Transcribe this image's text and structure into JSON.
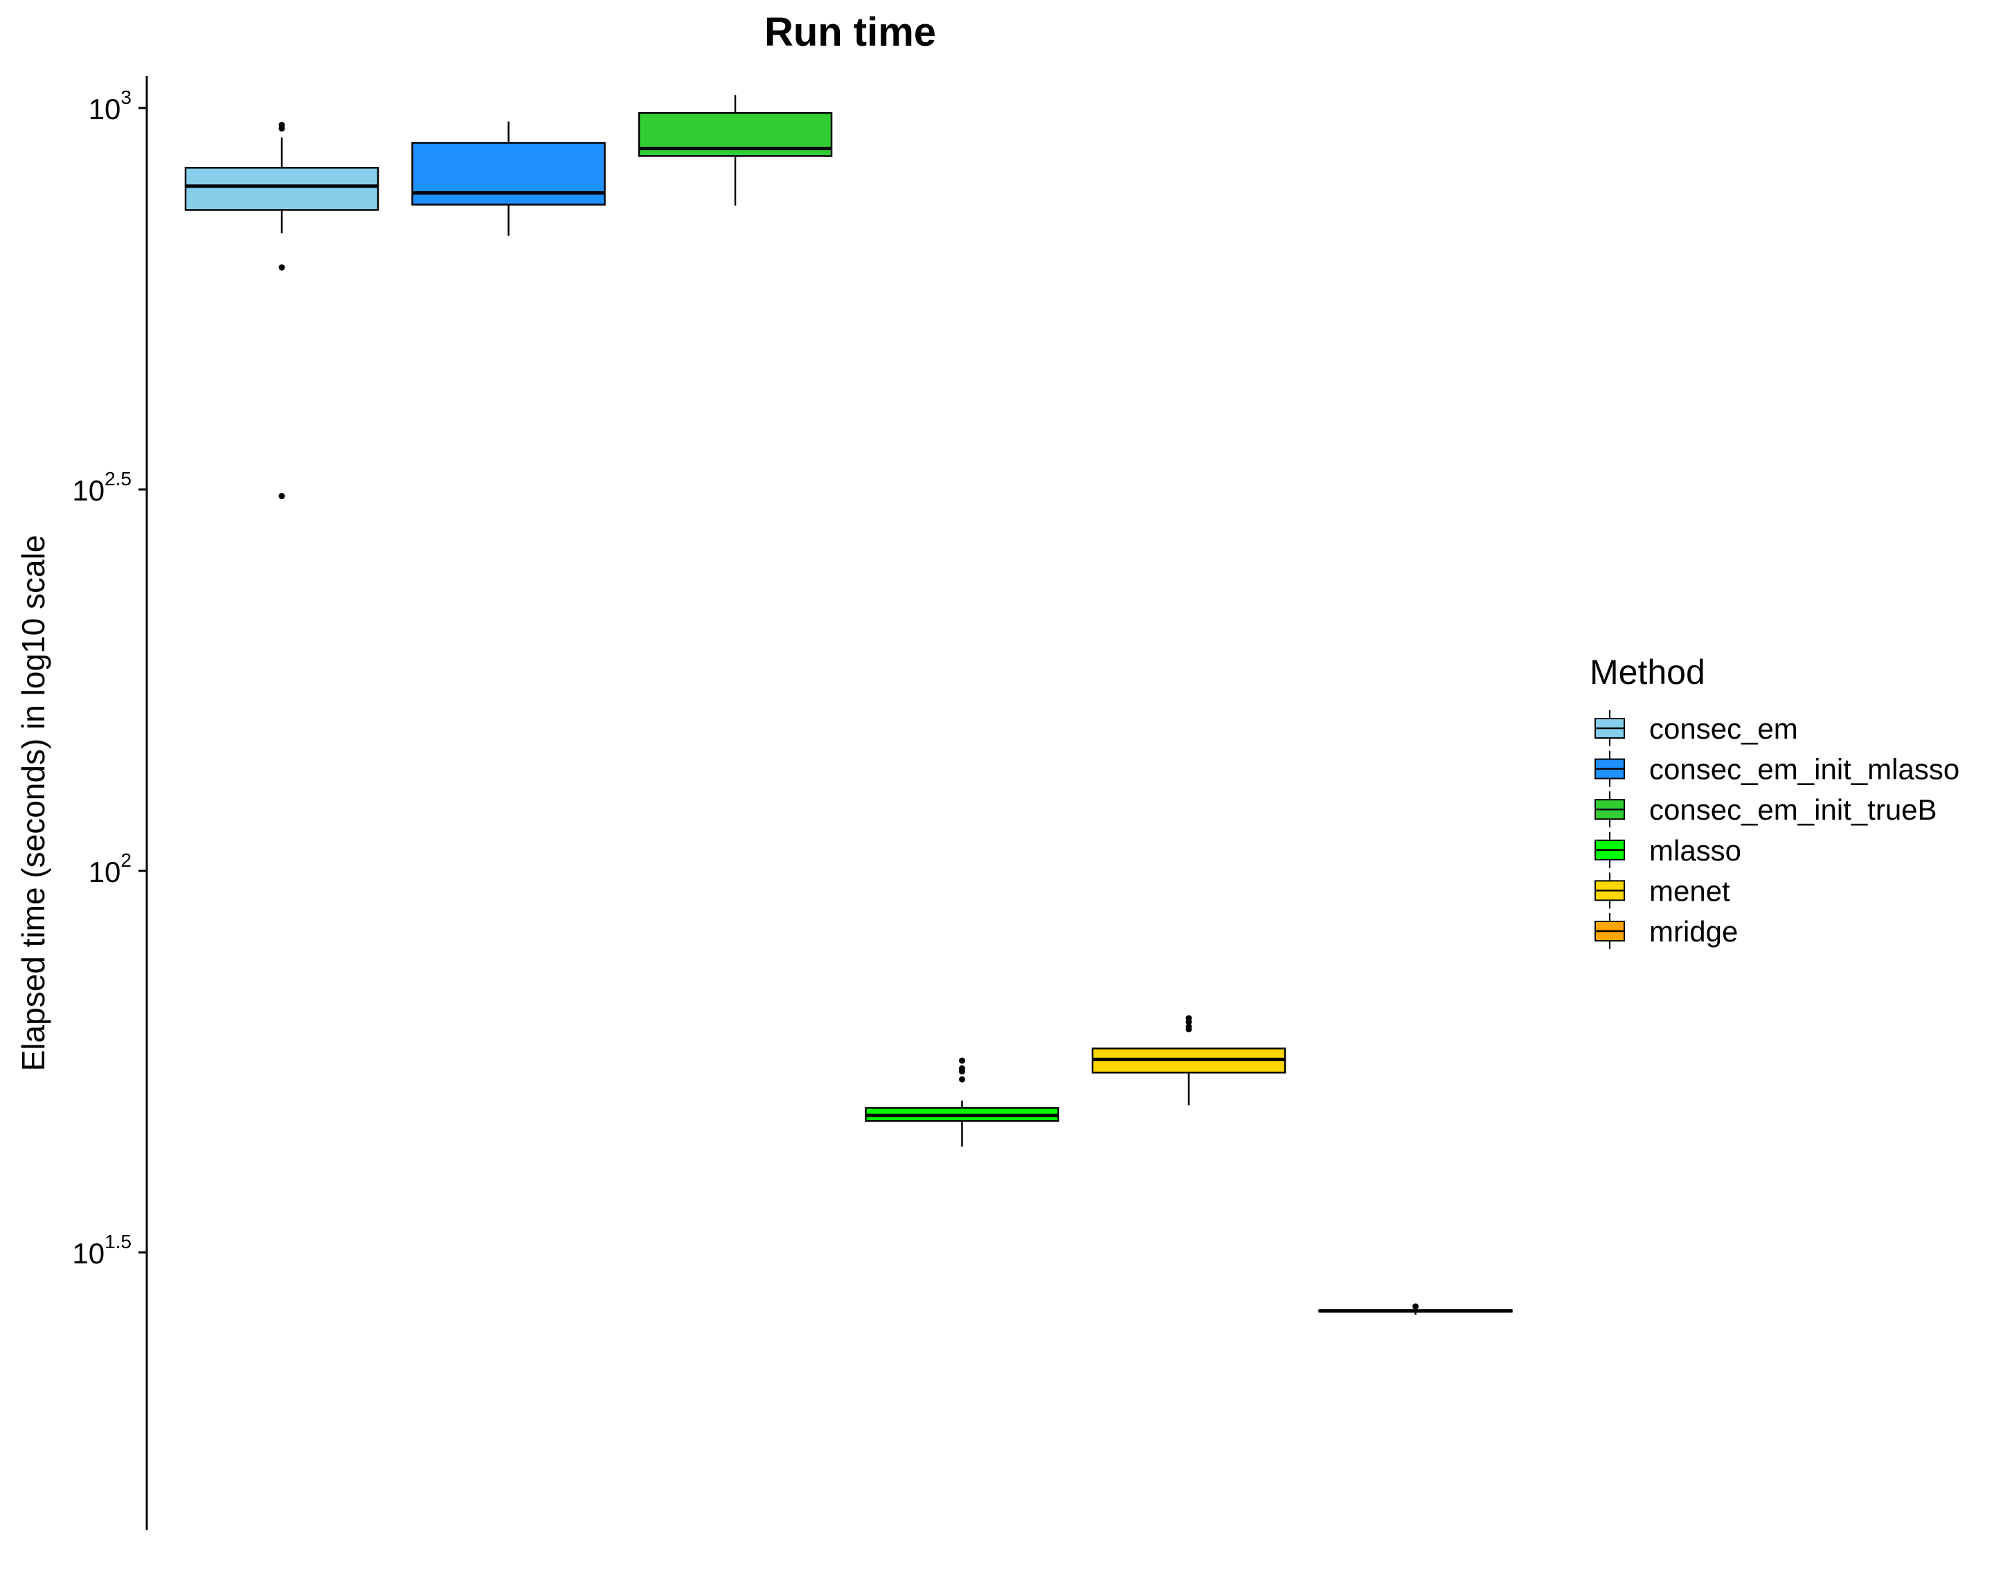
{
  "chart_data": {
    "type": "box",
    "title": "Run time",
    "xlabel": "",
    "ylabel": "Elapsed time (seconds) in log10 scale",
    "y_scale": "log10",
    "ylim": [
      17.5,
      1090
    ],
    "y_ticks": [
      {
        "value": 1000,
        "base": "10",
        "exp": "3"
      },
      {
        "value": 316.23,
        "base": "10",
        "exp": "2.5"
      },
      {
        "value": 100,
        "base": "10",
        "exp": "2"
      },
      {
        "value": 31.62,
        "base": "10",
        "exp": "1.5"
      }
    ],
    "grid": false,
    "legend": {
      "title": "Method",
      "position": "right"
    },
    "series": [
      {
        "name": "consec_em",
        "color": "#87CEEB",
        "whisker_low": 685,
        "q1": 735,
        "median": 790,
        "q3": 835,
        "whisker_high": 915,
        "outliers": [
          950,
          940,
          618,
          310
        ]
      },
      {
        "name": "consec_em_init_mlasso",
        "color": "#1E90FF",
        "whisker_low": 680,
        "q1": 747,
        "median": 774,
        "q3": 900,
        "whisker_high": 960,
        "outliers": []
      },
      {
        "name": "consec_em_init_trueB",
        "color": "#32CD32",
        "whisker_low": 745,
        "q1": 865,
        "median": 885,
        "q3": 985,
        "whisker_high": 1040,
        "outliers": []
      },
      {
        "name": "mlasso",
        "color": "#00FF00",
        "whisker_low": 43.5,
        "q1": 47.0,
        "median": 47.8,
        "q3": 48.9,
        "whisker_high": 50.0,
        "outliers": [
          53.3,
          54.6,
          55.1,
          56.4
        ]
      },
      {
        "name": "menet",
        "color": "#FFD700",
        "whisker_low": 49.3,
        "q1": 54.4,
        "median": 56.6,
        "q3": 58.5,
        "whisker_high": 58.5,
        "outliers": [
          62.0,
          62.5,
          63.4,
          64.1
        ]
      },
      {
        "name": "mridge",
        "color": "#FFA500",
        "whisker_low": 26.2,
        "q1": 26.45,
        "median": 26.5,
        "q3": 26.55,
        "whisker_high": 26.7,
        "outliers": [
          26.85
        ]
      }
    ]
  }
}
